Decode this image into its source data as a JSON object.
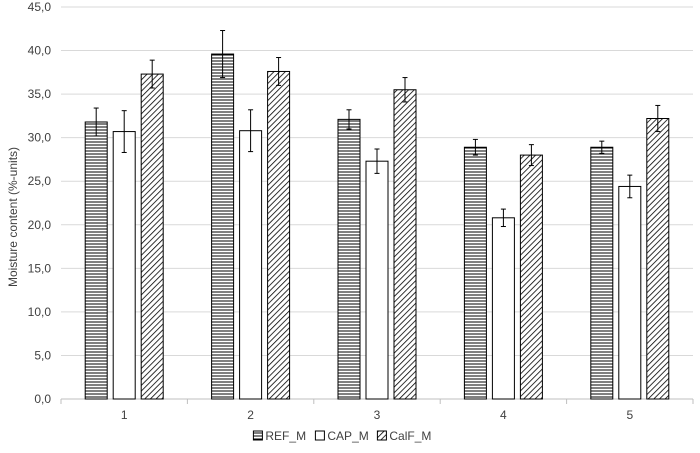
{
  "chart_data": {
    "type": "bar",
    "title": "",
    "xlabel": "",
    "ylabel": "Moisture content (%-units)",
    "categories": [
      "1",
      "2",
      "3",
      "4",
      "5"
    ],
    "ylim": [
      0,
      45
    ],
    "yticks": [
      "0,0",
      "5,0",
      "10,0",
      "15,0",
      "20,0",
      "25,0",
      "30,0",
      "35,0",
      "40,0",
      "45,0"
    ],
    "grid": "horizontal",
    "legend_position": "bottom",
    "series": [
      {
        "name": "REF_M",
        "pattern": "horizontal-lines",
        "values": [
          31.8,
          39.6,
          32.1,
          28.9,
          28.9
        ],
        "errors": [
          1.6,
          2.7,
          1.1,
          0.9,
          0.7
        ]
      },
      {
        "name": "CAP_M",
        "pattern": "solid-white",
        "values": [
          30.7,
          30.8,
          27.3,
          20.8,
          24.4
        ],
        "errors": [
          2.4,
          2.4,
          1.4,
          1.0,
          1.3
        ]
      },
      {
        "name": "CalF_M",
        "pattern": "diagonal-lines",
        "values": [
          37.3,
          37.6,
          35.5,
          28.0,
          32.2
        ],
        "errors": [
          1.6,
          1.6,
          1.4,
          1.2,
          1.5
        ]
      }
    ],
    "colors": {
      "stroke": "#000000",
      "fill": "#ffffff",
      "grid": "#d9d9d9",
      "axis": "#bfbfbf",
      "text": "#404040"
    }
  }
}
